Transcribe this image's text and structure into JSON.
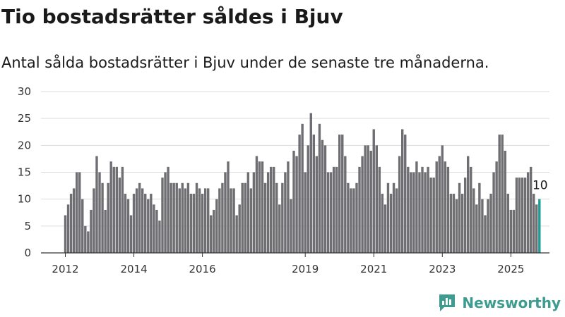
{
  "title": "Tio bostadsrätter såldes i Bjuv",
  "subtitle": "Antal sålda bostadsrätter i Bjuv under de senaste tre månaderna.",
  "brand": {
    "name": "Newsworthy",
    "color": "#3d9c8f"
  },
  "chart_data": {
    "type": "bar",
    "ylim": [
      0,
      30
    ],
    "yticks": [
      0,
      5,
      10,
      15,
      20,
      25,
      30
    ],
    "grid": true,
    "xticks": [
      {
        "label": "2012",
        "year": 2012
      },
      {
        "label": "2014",
        "year": 2014
      },
      {
        "label": "2016",
        "year": 2016
      },
      {
        "label": "2019",
        "year": 2019
      },
      {
        "label": "2021",
        "year": 2021
      },
      {
        "label": "2023",
        "year": 2023
      },
      {
        "label": "2025",
        "year": 2025
      }
    ],
    "start_year": 2012,
    "start_month": 1,
    "bar_color": "#6f6e73",
    "highlight_color": "#1f9c96",
    "highlight_last": true,
    "last_value_label": "10",
    "values": [
      7,
      9,
      11,
      12,
      15,
      15,
      10,
      5,
      4,
      8,
      12,
      18,
      15,
      13,
      8,
      13,
      17,
      16,
      16,
      14,
      16,
      11,
      10,
      7,
      11,
      12,
      13,
      12,
      11,
      10,
      11,
      9,
      8,
      6,
      14,
      15,
      16,
      13,
      13,
      13,
      12,
      13,
      12,
      13,
      11,
      11,
      13,
      12,
      11,
      12,
      12,
      7,
      8,
      10,
      12,
      13,
      15,
      17,
      12,
      12,
      7,
      9,
      13,
      13,
      15,
      12,
      15,
      18,
      17,
      17,
      13,
      15,
      16,
      16,
      13,
      9,
      13,
      15,
      17,
      10,
      19,
      18,
      22,
      24,
      15,
      20,
      26,
      22,
      18,
      24,
      21,
      20,
      15,
      15,
      16,
      16,
      22,
      22,
      18,
      13,
      12,
      12,
      13,
      16,
      18,
      20,
      20,
      19,
      23,
      20,
      16,
      11,
      9,
      13,
      11,
      13,
      12,
      18,
      23,
      22,
      16,
      15,
      15,
      17,
      15,
      16,
      15,
      16,
      14,
      14,
      17,
      18,
      20,
      17,
      16,
      11,
      11,
      10,
      13,
      11,
      14,
      18,
      16,
      12,
      9,
      13,
      10,
      7,
      10,
      11,
      15,
      17,
      22,
      22,
      19,
      11,
      8,
      8,
      14,
      14,
      14,
      14,
      15,
      16,
      11,
      9,
      10
    ]
  }
}
